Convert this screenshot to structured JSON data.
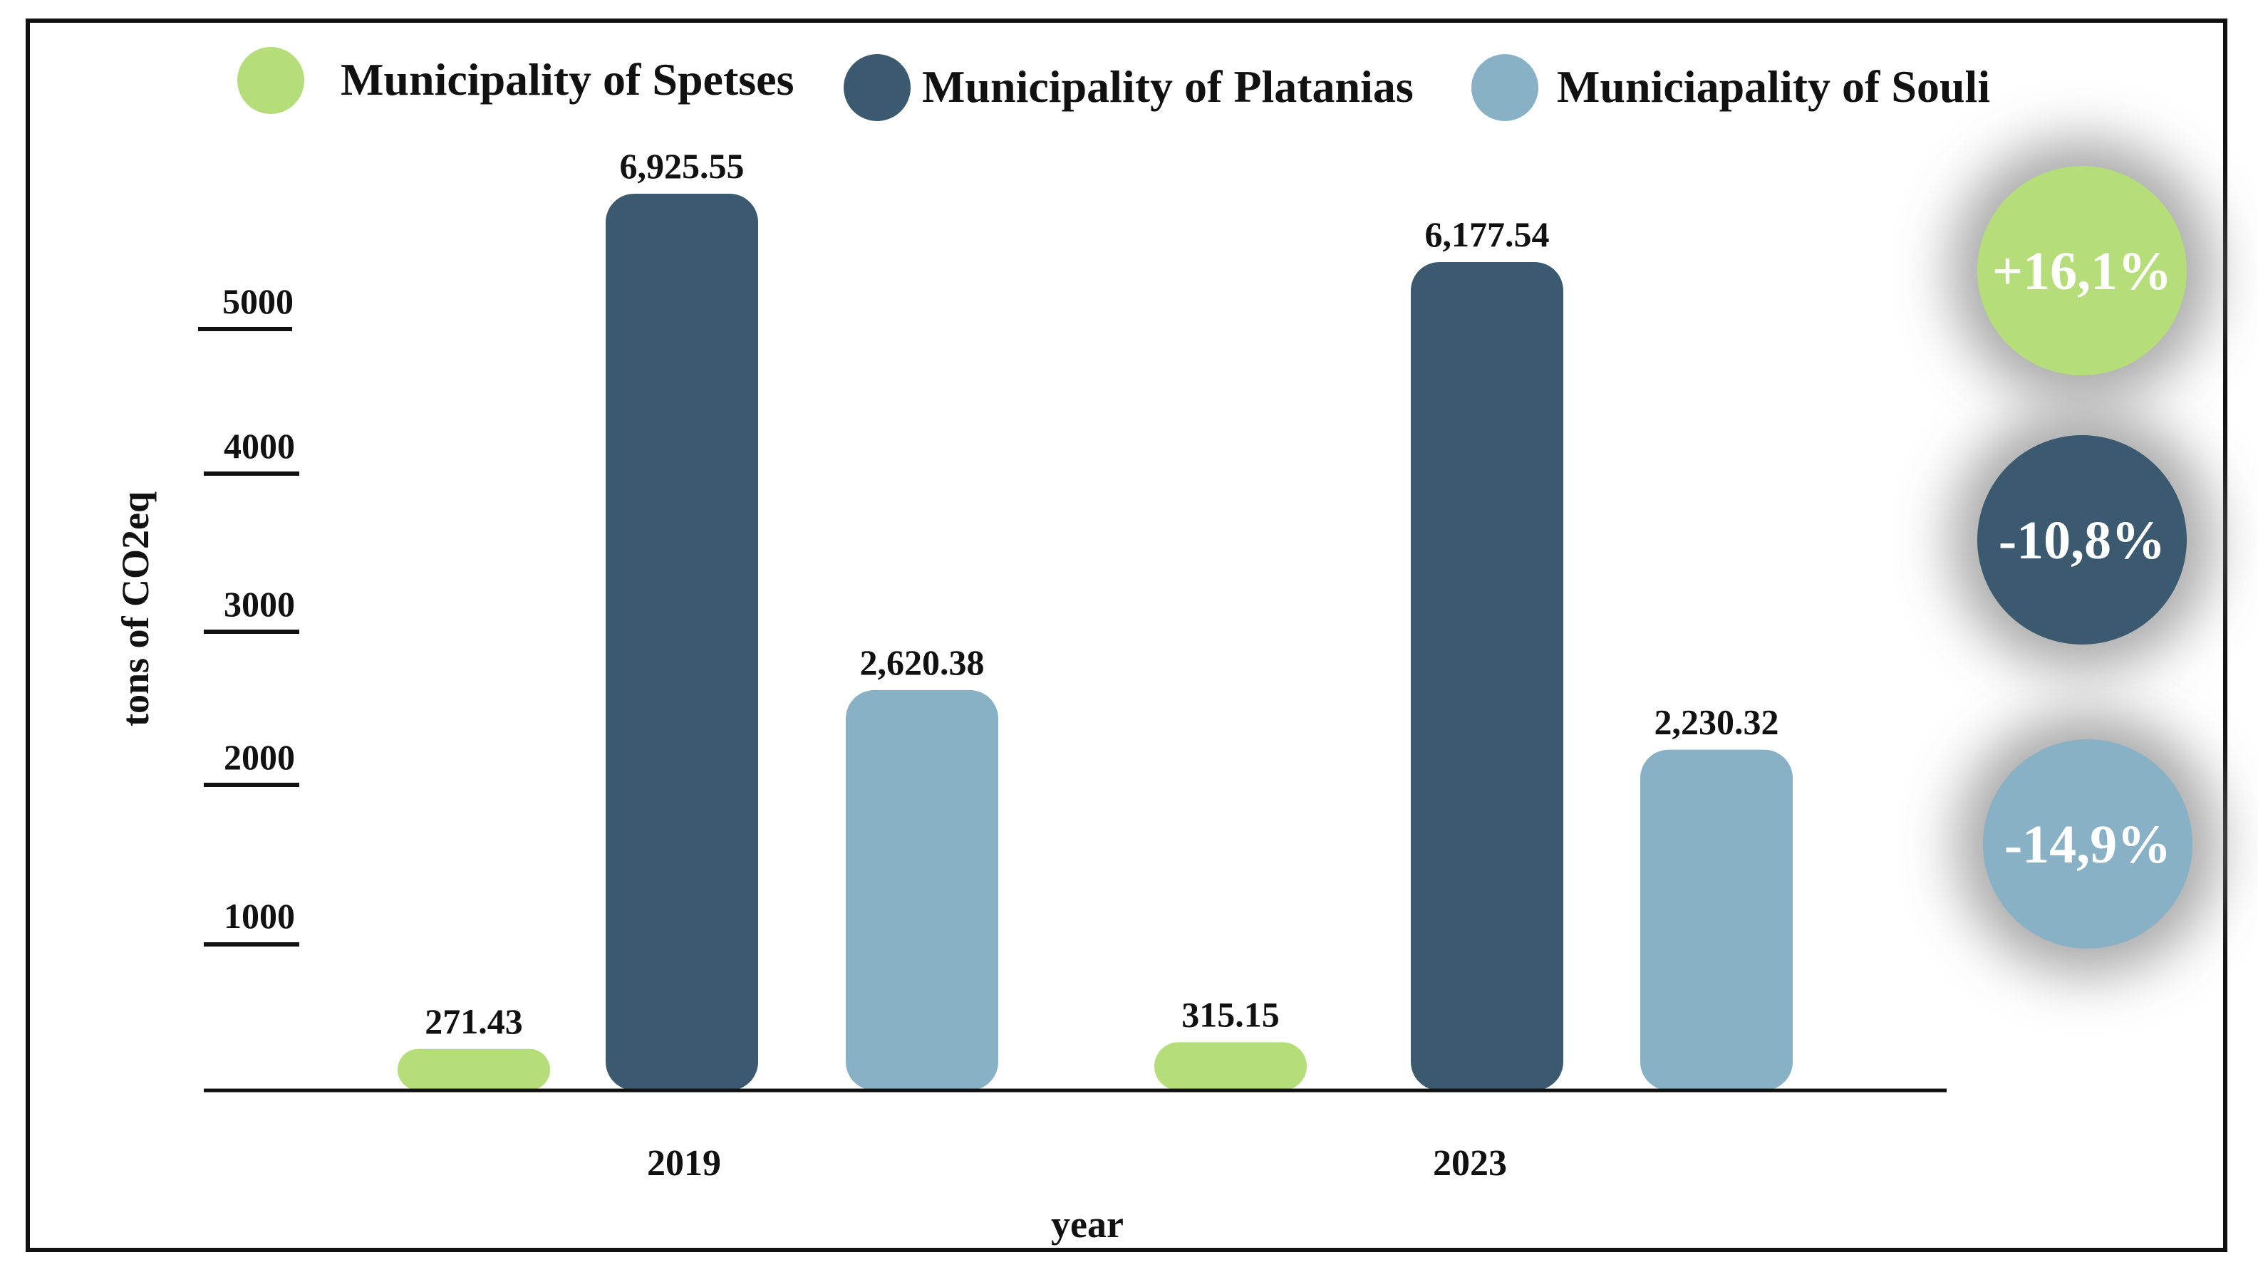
{
  "chart_data": {
    "type": "bar",
    "categories": [
      "2019",
      "2023"
    ],
    "series": [
      {
        "name": "Municipality of Spetses",
        "color": "#b5dd79",
        "values": [
          271.43,
          315.15
        ],
        "labels": [
          "271.43",
          "315.15"
        ]
      },
      {
        "name": "Municipality of Platanias",
        "color": "#3b5a70",
        "values": [
          6925.55,
          6177.54
        ],
        "labels": [
          "6,925.55",
          "6,177.54"
        ]
      },
      {
        "name": "Municiapality of Souli",
        "color": "#89b1c5",
        "values": [
          2620.38,
          2230.32
        ],
        "labels": [
          "2,620.38",
          "2,230.32"
        ]
      }
    ],
    "yticks": [
      "5000",
      "4000",
      "3000",
      "2000",
      "1000"
    ],
    "xlabel": "year",
    "ylabel": "tons of CO2eq",
    "legend_position": "top",
    "grid": false,
    "change_badges": [
      {
        "label": "+16,1%",
        "color": "#b5dd79"
      },
      {
        "label": "-10,8%",
        "color": "#3b5a70"
      },
      {
        "label": "-14,9%",
        "color": "#89b1c5"
      }
    ]
  }
}
